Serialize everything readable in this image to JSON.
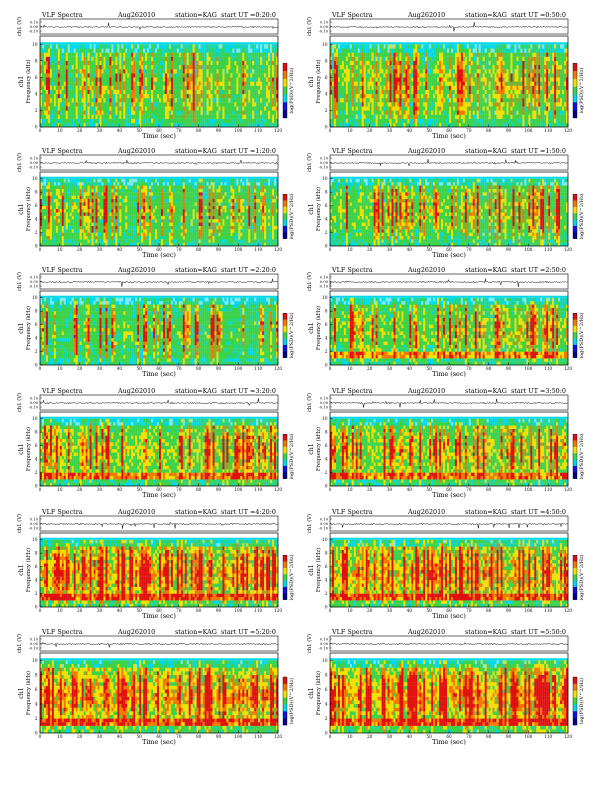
{
  "page": {
    "header_title": "VLF Spectra",
    "date": "Aug262010",
    "station": "station=KAG",
    "start_prefix": "start  UT =",
    "waveform_label": "ch1 (V)",
    "spectrogram_label": "Frequency  (kHz)",
    "channel_label": "ch1",
    "colorbar_label": "log(PSD)(V^2/Hz)"
  },
  "colors": {
    "cyan": "#00d8e8",
    "green": "#3cd24a",
    "yellow": "#f0e000",
    "orange": "#f07a00",
    "red": "#e01010",
    "blue": "#1010e0",
    "dark_blue": "#000090"
  },
  "chart_data": [
    {
      "type": "heatmap",
      "start_ut": "0:20:0",
      "intensity": 0.28,
      "xlabel": "Time  (sec)",
      "xlim": [
        0,
        120
      ],
      "ylim": [
        0,
        10
      ],
      "x_ticks": [
        "0",
        "10",
        "20",
        "30",
        "40",
        "50",
        "60",
        "70",
        "80",
        "90",
        "100",
        "110",
        "120"
      ],
      "y_ticks": [
        "0",
        "2",
        "4",
        "6",
        "8",
        "10"
      ],
      "wave_ticks": [
        "0.10",
        "0.00",
        "-0.10"
      ]
    },
    {
      "type": "heatmap",
      "start_ut": "0:50:0",
      "intensity": 0.32,
      "xlabel": "Time  (sec)",
      "xlim": [
        0,
        120
      ],
      "ylim": [
        0,
        10
      ],
      "x_ticks": [
        "0",
        "10",
        "20",
        "30",
        "40",
        "50",
        "60",
        "70",
        "80",
        "90",
        "100",
        "110",
        "120"
      ],
      "y_ticks": [
        "0",
        "2",
        "4",
        "6",
        "8",
        "10"
      ],
      "wave_ticks": [
        "0.10",
        "0.00",
        "-0.10"
      ]
    },
    {
      "type": "heatmap",
      "start_ut": "1:20:0",
      "intensity": 0.28,
      "xlabel": "Time  (sec)",
      "xlim": [
        0,
        120
      ],
      "ylim": [
        0,
        10
      ],
      "x_ticks": [
        "0",
        "10",
        "20",
        "30",
        "40",
        "50",
        "60",
        "70",
        "80",
        "90",
        "100",
        "110",
        "120"
      ],
      "y_ticks": [
        "0",
        "2",
        "4",
        "6",
        "8",
        "10"
      ],
      "wave_ticks": [
        "0.10",
        "0.00",
        "-0.10"
      ]
    },
    {
      "type": "heatmap",
      "start_ut": "1:50:0",
      "intensity": 0.33,
      "xlabel": "Time  (sec)",
      "xlim": [
        0,
        120
      ],
      "ylim": [
        0,
        10
      ],
      "x_ticks": [
        "0",
        "10",
        "20",
        "30",
        "40",
        "50",
        "60",
        "70",
        "80",
        "90",
        "100",
        "110",
        "120"
      ],
      "y_ticks": [
        "0",
        "2",
        "4",
        "6",
        "8",
        "10"
      ],
      "wave_ticks": [
        "0.10",
        "0.00",
        "-0.10"
      ]
    },
    {
      "type": "heatmap",
      "start_ut": "2:20:0",
      "intensity": 0.22,
      "xlabel": "Time  (sec)",
      "xlim": [
        0,
        120
      ],
      "ylim": [
        0,
        10
      ],
      "x_ticks": [
        "0",
        "10",
        "20",
        "30",
        "40",
        "50",
        "60",
        "70",
        "80",
        "90",
        "100",
        "110",
        "120"
      ],
      "y_ticks": [
        "0",
        "2",
        "4",
        "6",
        "8",
        "10"
      ],
      "wave_ticks": [
        "0.10",
        "0.00",
        "-0.10"
      ]
    },
    {
      "type": "heatmap",
      "start_ut": "2:50:0",
      "intensity": 0.35,
      "xlabel": "Time  (sec)",
      "xlim": [
        0,
        120
      ],
      "ylim": [
        0,
        10
      ],
      "x_ticks": [
        "0",
        "10",
        "20",
        "30",
        "40",
        "50",
        "60",
        "70",
        "80",
        "90",
        "100",
        "110",
        "120"
      ],
      "y_ticks": [
        "0",
        "2",
        "4",
        "6",
        "8",
        "10"
      ],
      "wave_ticks": [
        "0.10",
        "0.00",
        "-0.10"
      ]
    },
    {
      "type": "heatmap",
      "start_ut": "3:20:0",
      "intensity": 0.45,
      "xlabel": "Time  (sec)",
      "xlim": [
        0,
        120
      ],
      "ylim": [
        0,
        10
      ],
      "x_ticks": [
        "0",
        "10",
        "20",
        "30",
        "40",
        "50",
        "60",
        "70",
        "80",
        "90",
        "100",
        "110",
        "120"
      ],
      "y_ticks": [
        "0",
        "2",
        "4",
        "6",
        "8",
        "10"
      ],
      "wave_ticks": [
        "0.10",
        "0.00",
        "-0.10"
      ]
    },
    {
      "type": "heatmap",
      "start_ut": "3:50:0",
      "intensity": 0.5,
      "xlabel": "Time  (sec)",
      "xlim": [
        0,
        120
      ],
      "ylim": [
        0,
        10
      ],
      "x_ticks": [
        "0",
        "10",
        "20",
        "30",
        "40",
        "50",
        "60",
        "70",
        "80",
        "90",
        "100",
        "110",
        "120"
      ],
      "y_ticks": [
        "0",
        "2",
        "4",
        "6",
        "8",
        "10"
      ],
      "wave_ticks": [
        "0.10",
        "0.00",
        "-0.10"
      ]
    },
    {
      "type": "heatmap",
      "start_ut": "4:20:0",
      "intensity": 0.7,
      "xlabel": "Time  (sec)",
      "xlim": [
        0,
        120
      ],
      "ylim": [
        0,
        10
      ],
      "x_ticks": [
        "0",
        "10",
        "20",
        "30",
        "40",
        "50",
        "60",
        "70",
        "80",
        "90",
        "100",
        "110",
        "120"
      ],
      "y_ticks": [
        "0",
        "2",
        "4",
        "6",
        "8",
        "10"
      ],
      "wave_ticks": [
        "0.10",
        "0.00",
        "-0.10"
      ]
    },
    {
      "type": "heatmap",
      "start_ut": "4:50:0",
      "intensity": 0.75,
      "xlabel": "Time  (sec)",
      "xlim": [
        0,
        120
      ],
      "ylim": [
        0,
        10
      ],
      "x_ticks": [
        "0",
        "10",
        "20",
        "30",
        "40",
        "50",
        "60",
        "70",
        "80",
        "90",
        "100",
        "110",
        "120"
      ],
      "y_ticks": [
        "0",
        "2",
        "4",
        "6",
        "8",
        "10"
      ],
      "wave_ticks": [
        "0.10",
        "0.00",
        "-0.10"
      ]
    },
    {
      "type": "heatmap",
      "start_ut": "5:20:0",
      "intensity": 0.78,
      "xlabel": "Time  (sec)",
      "xlim": [
        0,
        120
      ],
      "ylim": [
        0,
        10
      ],
      "x_ticks": [
        "0",
        "10",
        "20",
        "30",
        "40",
        "50",
        "60",
        "70",
        "80",
        "90",
        "100",
        "110",
        "120"
      ],
      "y_ticks": [
        "0",
        "2",
        "4",
        "6",
        "8",
        "10"
      ],
      "wave_ticks": [
        "0.10",
        "0.00",
        "-0.10"
      ]
    },
    {
      "type": "heatmap",
      "start_ut": "5:50:0",
      "intensity": 0.78,
      "xlabel": "Time  (sec)",
      "xlim": [
        0,
        120
      ],
      "ylim": [
        0,
        10
      ],
      "x_ticks": [
        "0",
        "10",
        "20",
        "30",
        "40",
        "50",
        "60",
        "70",
        "80",
        "90",
        "100",
        "110",
        "120"
      ],
      "y_ticks": [
        "0",
        "2",
        "4",
        "6",
        "8",
        "10"
      ],
      "wave_ticks": [
        "0.10",
        "0.00",
        "-0.10"
      ]
    }
  ]
}
